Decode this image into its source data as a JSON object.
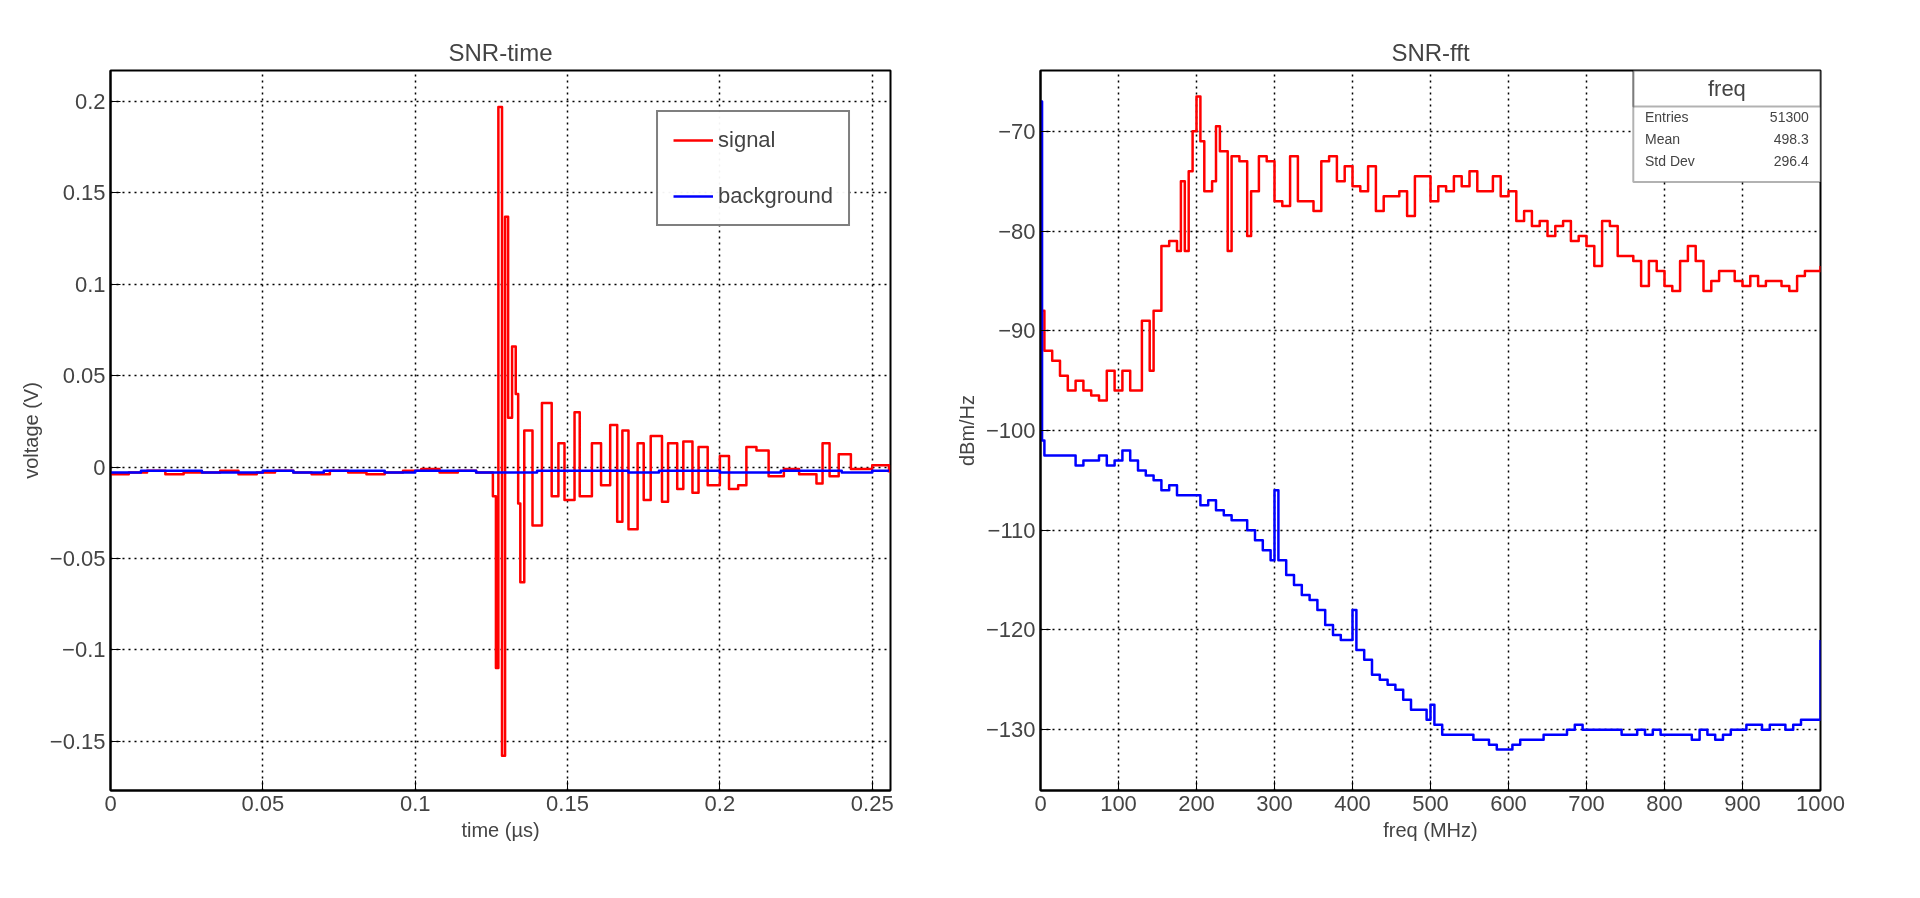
{
  "chart_data": [
    {
      "type": "step",
      "title": "SNR-time",
      "xlabel": "time (µs)",
      "ylabel": "voltage (V)",
      "xlim": [
        0,
        0.256
      ],
      "ylim": [
        -0.177,
        0.217
      ],
      "xticks": [
        0,
        0.05,
        0.1,
        0.15,
        0.2,
        0.25
      ],
      "yticks": [
        {
          "value": -0.15,
          "label": "−0.15"
        },
        {
          "value": -0.1,
          "label": "−0.1"
        },
        {
          "value": -0.05,
          "label": "−0.05"
        },
        0,
        0.05,
        0.1,
        0.15,
        0.2
      ],
      "grid": true,
      "legend": "top right",
      "line_style": "solid",
      "series": [
        {
          "name": "signal",
          "color": "#ff0000",
          "x": [
            0,
            0.006,
            0.012,
            0.018,
            0.024,
            0.03,
            0.036,
            0.042,
            0.048,
            0.054,
            0.06,
            0.066,
            0.072,
            0.078,
            0.084,
            0.09,
            0.096,
            0.102,
            0.108,
            0.114,
            0.12,
            0.1255,
            0.1265,
            0.1273,
            0.1285,
            0.1295,
            0.1305,
            0.1318,
            0.133,
            0.1338,
            0.1345,
            0.1358,
            0.1385,
            0.1416,
            0.1448,
            0.147,
            0.149,
            0.1523,
            0.154,
            0.158,
            0.161,
            0.164,
            0.1663,
            0.168,
            0.17,
            0.173,
            0.175,
            0.1773,
            0.181,
            0.183,
            0.186,
            0.188,
            0.191,
            0.193,
            0.196,
            0.2,
            0.203,
            0.206,
            0.2087,
            0.212,
            0.216,
            0.221,
            0.226,
            0.2317,
            0.2337,
            0.236,
            0.239,
            0.243,
            0.25,
            0.2555
          ],
          "values": [
            -0.004,
            -0.003,
            -0.002,
            -0.004,
            -0.003,
            -0.003,
            -0.002,
            -0.004,
            -0.003,
            -0.002,
            -0.003,
            -0.004,
            -0.002,
            -0.003,
            -0.004,
            -0.003,
            -0.002,
            -0.001,
            -0.003,
            -0.002,
            -0.003,
            -0.016,
            -0.11,
            0.197,
            -0.158,
            0.137,
            0.027,
            0.066,
            0.04,
            -0.02,
            -0.063,
            0.02,
            -0.032,
            0.035,
            -0.016,
            0.013,
            -0.018,
            0.03,
            -0.016,
            0.013,
            -0.01,
            0.023,
            -0.03,
            0.02,
            -0.034,
            0.013,
            -0.018,
            0.017,
            -0.019,
            0.013,
            -0.012,
            0.014,
            -0.014,
            0.011,
            -0.01,
            0.006,
            -0.012,
            -0.01,
            0.011,
            0.009,
            -0.005,
            -0.001,
            -0.004,
            -0.009,
            0.013,
            -0.005,
            0.007,
            -0.001,
            0.001,
            -0.003
          ]
        },
        {
          "name": "background",
          "color": "#0000ff",
          "x": [
            0,
            0.01,
            0.02,
            0.03,
            0.04,
            0.05,
            0.06,
            0.07,
            0.08,
            0.09,
            0.1,
            0.11,
            0.12,
            0.13,
            0.14,
            0.15,
            0.16,
            0.17,
            0.18,
            0.19,
            0.2,
            0.21,
            0.22,
            0.23,
            0.24,
            0.25,
            0.2555
          ],
          "values": [
            -0.003,
            -0.002,
            -0.002,
            -0.003,
            -0.003,
            -0.002,
            -0.003,
            -0.002,
            -0.002,
            -0.003,
            -0.002,
            -0.002,
            -0.003,
            -0.003,
            -0.002,
            -0.002,
            -0.002,
            -0.003,
            -0.002,
            -0.002,
            -0.003,
            -0.003,
            -0.002,
            -0.002,
            -0.003,
            -0.002,
            -0.002
          ]
        }
      ]
    },
    {
      "type": "step",
      "title": "SNR-fft",
      "xlabel": "freq (MHz)",
      "ylabel": "dBm/Hz",
      "xlim": [
        0,
        1000
      ],
      "ylim": [
        -136.1,
        -63.9
      ],
      "xticks": [
        0,
        100,
        200,
        300,
        400,
        500,
        600,
        700,
        800,
        900,
        1000
      ],
      "yticks": [
        {
          "value": -130,
          "label": "−130"
        },
        {
          "value": -120,
          "label": "−120"
        },
        {
          "value": -110,
          "label": "−110"
        },
        {
          "value": -100,
          "label": "−100"
        },
        {
          "value": -90,
          "label": "−90"
        },
        {
          "value": -80,
          "label": "−80"
        },
        {
          "value": -70,
          "label": "−70"
        }
      ],
      "grid": true,
      "line_style": "solid",
      "annotations": [
        "freq",
        "Entries 51300",
        "Mean 498.3",
        "Std Dev 296.4"
      ],
      "series": [
        {
          "color": "#ff0000",
          "x": [
            0,
            5,
            15,
            25,
            35,
            45,
            55,
            65,
            75,
            85,
            95,
            105,
            115,
            125,
            130,
            140,
            145,
            155,
            165,
            175,
            180,
            185,
            190,
            195,
            200,
            205,
            210,
            220,
            225,
            230,
            240,
            245,
            255,
            265,
            270,
            280,
            290,
            300,
            310,
            320,
            330,
            340,
            350,
            360,
            370,
            380,
            390,
            400,
            410,
            420,
            430,
            440,
            450,
            460,
            470,
            480,
            490,
            500,
            510,
            520,
            530,
            540,
            550,
            560,
            570,
            580,
            590,
            600,
            610,
            620,
            630,
            640,
            650,
            660,
            670,
            680,
            690,
            700,
            710,
            720,
            730,
            740,
            750,
            760,
            770,
            780,
            790,
            800,
            810,
            820,
            830,
            840,
            850,
            860,
            870,
            880,
            890,
            900,
            910,
            920,
            930,
            940,
            950,
            960,
            970,
            980,
            990,
            1000
          ],
          "values": [
            -88,
            -92,
            -93,
            -94.5,
            -96,
            -95,
            -96,
            -96.5,
            -97,
            -94,
            -96,
            -94,
            -96,
            -96,
            -89,
            -94,
            -88,
            -81.5,
            -81,
            -82,
            -75,
            -82,
            -74,
            -70,
            -66.5,
            -71,
            -76,
            -75,
            -69.5,
            -72,
            -82,
            -72.5,
            -73,
            -80.5,
            -76,
            -72.5,
            -73,
            -77,
            -77.5,
            -72.5,
            -77,
            -77,
            -78,
            -73,
            -72.5,
            -75,
            -73.5,
            -75.5,
            -76,
            -73.5,
            -78,
            -76.5,
            -76.5,
            -76,
            -78.5,
            -74.5,
            -74.5,
            -77,
            -75.5,
            -76,
            -74.5,
            -75.5,
            -74,
            -76,
            -76,
            -74.5,
            -76.5,
            -76,
            -79,
            -78,
            -79.5,
            -79,
            -80.5,
            -79.5,
            -79,
            -81,
            -80.5,
            -81.5,
            -83.5,
            -79,
            -79.5,
            -82.5,
            -82.5,
            -83,
            -85.5,
            -83,
            -84,
            -85.5,
            -86,
            -83,
            -81.5,
            -83,
            -86,
            -85,
            -84,
            -84,
            -85,
            -85.5,
            -84.5,
            -85.5,
            -85,
            -85,
            -85.5,
            -86,
            -84.5,
            -84,
            -84,
            -83.5
          ]
        },
        {
          "color": "#0000ff",
          "x": [
            0,
            2,
            5,
            15,
            25,
            35,
            45,
            55,
            65,
            75,
            85,
            95,
            105,
            115,
            125,
            135,
            145,
            155,
            165,
            175,
            185,
            195,
            205,
            215,
            225,
            235,
            245,
            255,
            265,
            275,
            285,
            295,
            300,
            305,
            315,
            325,
            335,
            345,
            355,
            365,
            375,
            385,
            395,
            400,
            405,
            415,
            425,
            435,
            445,
            455,
            465,
            475,
            485,
            495,
            500,
            505,
            515,
            525,
            535,
            545,
            555,
            565,
            575,
            585,
            595,
            605,
            615,
            625,
            635,
            645,
            655,
            665,
            675,
            685,
            695,
            705,
            715,
            725,
            735,
            745,
            755,
            765,
            775,
            785,
            795,
            805,
            815,
            825,
            835,
            845,
            855,
            865,
            875,
            885,
            895,
            905,
            915,
            925,
            935,
            945,
            955,
            965,
            975,
            985,
            995,
            1000
          ],
          "values": [
            -67,
            -101,
            -102.5,
            -102.5,
            -102.5,
            -102.5,
            -103.5,
            -103,
            -103,
            -102.5,
            -103.5,
            -103,
            -102,
            -103,
            -104,
            -104.5,
            -105,
            -106,
            -105.5,
            -106.5,
            -106.5,
            -106.5,
            -107.5,
            -107,
            -108,
            -108.5,
            -109,
            -109,
            -110,
            -111,
            -112,
            -113,
            -106,
            -113,
            -114.5,
            -115.5,
            -116.5,
            -117,
            -118,
            -119.5,
            -120.5,
            -121,
            -121,
            -118,
            -122,
            -123,
            -124.5,
            -125,
            -125.5,
            -126,
            -127,
            -128,
            -128,
            -129,
            -127.5,
            -129.5,
            -130.5,
            -130.5,
            -130.5,
            -130.5,
            -131,
            -131,
            -131.5,
            -132,
            -132,
            -131.5,
            -131,
            -131,
            -131,
            -130.5,
            -130.5,
            -130.5,
            -130,
            -129.5,
            -130,
            -130,
            -130,
            -130,
            -130,
            -130.5,
            -130.5,
            -130,
            -130.5,
            -130,
            -130.5,
            -130.5,
            -130.5,
            -130.5,
            -131,
            -130,
            -130.5,
            -131,
            -130.5,
            -130,
            -130,
            -129.5,
            -129.5,
            -130,
            -129.5,
            -129.5,
            -130,
            -129.5,
            -129,
            -129,
            -129,
            -121
          ]
        }
      ]
    }
  ]
}
